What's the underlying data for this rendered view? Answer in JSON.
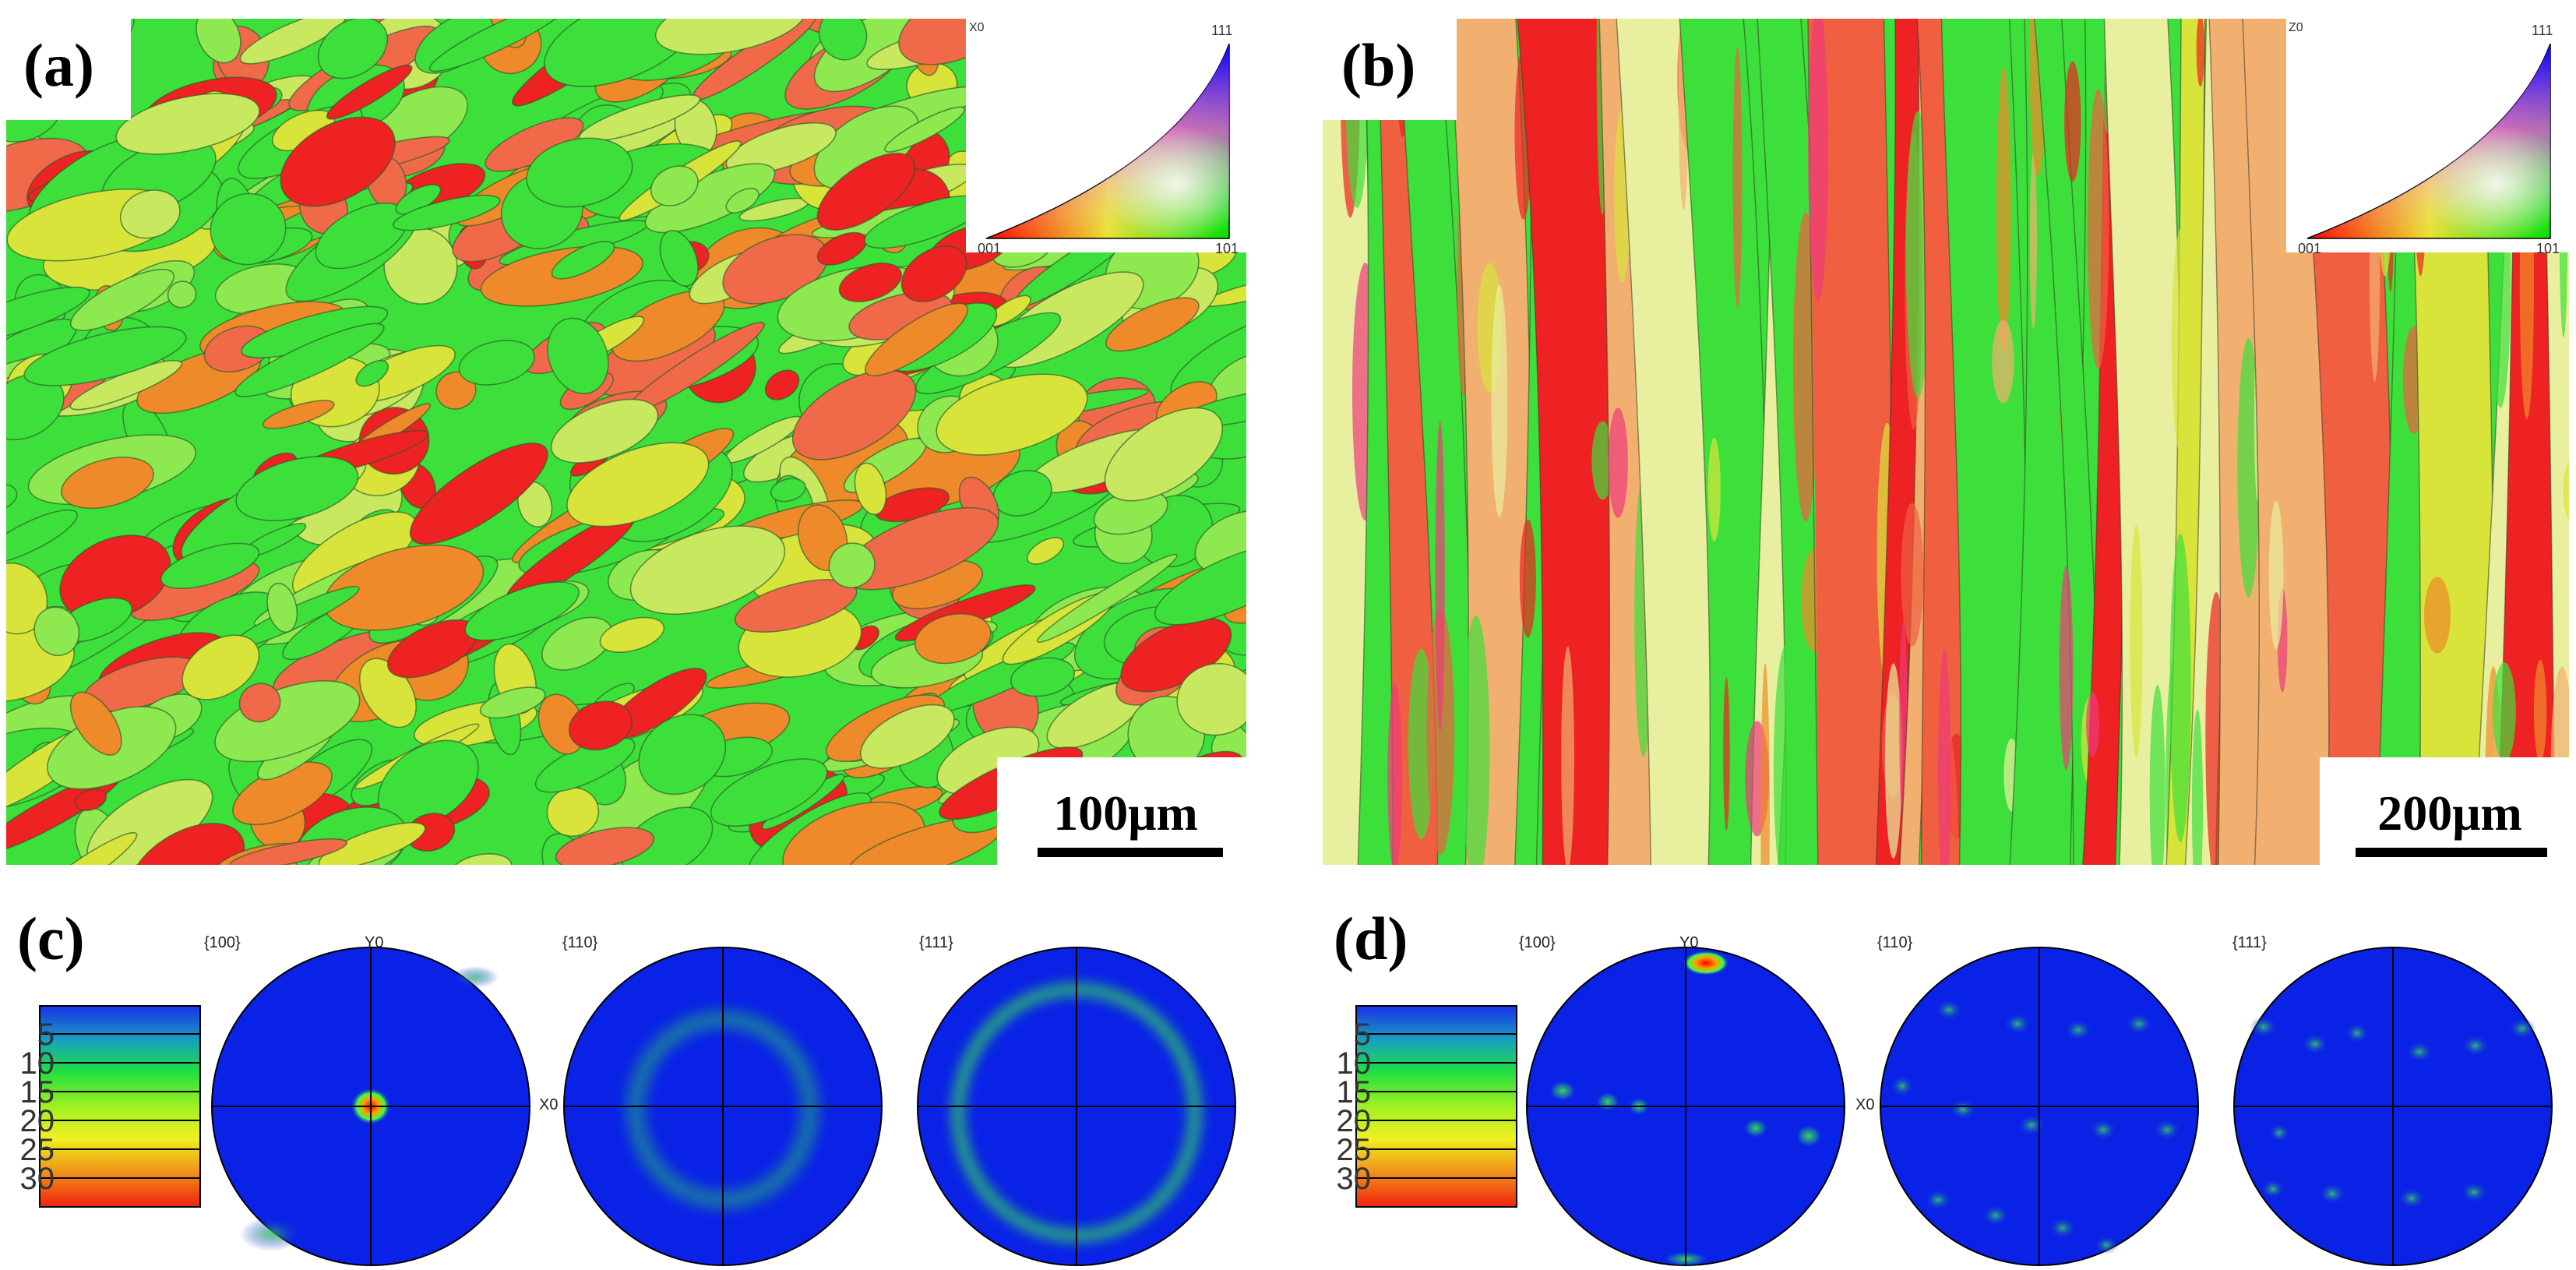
{
  "panels": {
    "a": {
      "label": "(a)",
      "scale": "100μm",
      "axis": "X0",
      "triangle": {
        "top": "111",
        "left": "001",
        "right": "101"
      }
    },
    "b": {
      "label": "(b)",
      "scale": "200μm",
      "axis": "Z0",
      "triangle": {
        "top": "111",
        "left": "001",
        "right": "101"
      }
    },
    "c": {
      "label": "(c)",
      "figures": [
        "{100}",
        "{110}",
        "{111}"
      ],
      "y_axis": "Y0",
      "x_axis": "X0",
      "legend": [
        "5",
        "10",
        "15",
        "20",
        "25",
        "30"
      ]
    },
    "d": {
      "label": "(d)",
      "figures": [
        "{100}",
        "{110}",
        "{111}"
      ],
      "y_axis": "Y0",
      "x_axis": "X0",
      "legend": [
        "5",
        "10",
        "15",
        "20",
        "25",
        "30"
      ]
    }
  },
  "colors": {
    "green": "#3de03a",
    "red": "#ee2222",
    "orange": "#ef8a2a",
    "yellow": "#d8e43a",
    "pink": "#ee3a7a",
    "pf_blue": "#0a22e6"
  }
}
